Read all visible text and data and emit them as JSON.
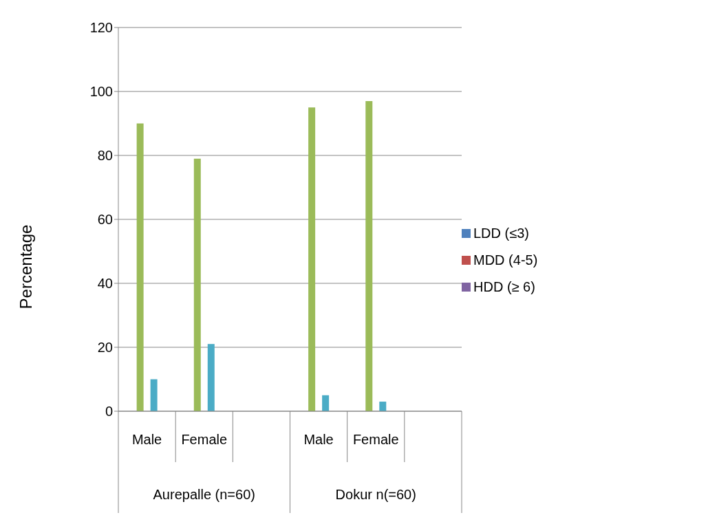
{
  "chart_data": {
    "type": "bar",
    "ylabel": "Percentage",
    "categories": [
      "Male",
      "Female",
      null,
      "Male",
      "Female",
      null
    ],
    "annotations": [
      "Aurepalle (n=60)",
      "Dokur n(=60)"
    ],
    "series": [
      {
        "name": "LDD (≤3)",
        "color": "#4f81bd",
        "values": [
          0,
          0,
          null,
          0,
          0,
          null
        ]
      },
      {
        "color": "#9bbb59",
        "values": [
          90,
          79,
          null,
          95,
          97,
          null
        ]
      },
      {
        "name": "MDD (4-5)",
        "color": "#c0504d",
        "values": [
          0,
          0,
          null,
          0,
          0,
          null
        ]
      },
      {
        "color": "#4bacc6",
        "values": [
          10,
          21,
          null,
          5,
          3,
          null
        ]
      },
      {
        "name": "HDD  (≥ 6)",
        "color": "#8064a2",
        "values": [
          0,
          0,
          null,
          0,
          0,
          null
        ]
      }
    ],
    "ylim": [
      0,
      120
    ],
    "yticks": [
      0,
      20,
      40,
      60,
      80,
      100,
      120
    ],
    "grid": "y",
    "legend": "right"
  }
}
